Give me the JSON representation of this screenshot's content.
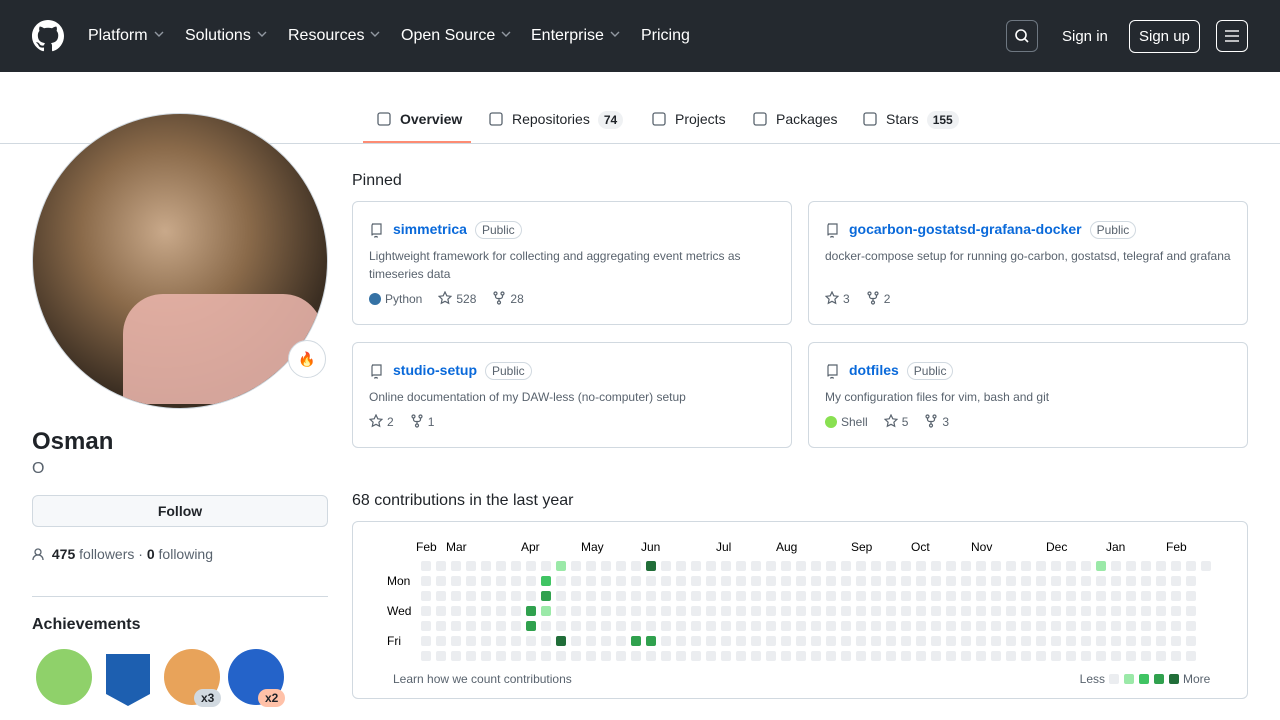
{
  "nav": {
    "items": [
      "Platform",
      "Solutions",
      "Resources",
      "Open Source",
      "Enterprise"
    ],
    "pricing": "Pricing",
    "sign_in": "Sign in",
    "sign_up": "Sign up"
  },
  "tabs": [
    {
      "label": "Overview"
    },
    {
      "label": "Repositories",
      "count": 74
    },
    {
      "label": "Projects"
    },
    {
      "label": "Packages"
    },
    {
      "label": "Stars",
      "count": 155
    }
  ],
  "profile": {
    "name": "Osman",
    "login": "O",
    "follow": "Follow",
    "followers": 475,
    "followers_label": "followers",
    "separator": "·",
    "following": 0,
    "following_label": "following"
  },
  "achievements": {
    "title": "Achievements",
    "badge_counts": [
      "x3",
      "x2"
    ]
  },
  "pinned": {
    "title": "Pinned",
    "repos": [
      {
        "name": "simmetrica",
        "visibility": "Public",
        "description": "Lightweight framework for collecting and aggregating event metrics as timeseries data",
        "language": "Python",
        "language_color": "#3572A5",
        "stars": 528,
        "forks": 28
      },
      {
        "name": "gocarbon-gostatsd-grafana-docker",
        "visibility": "Public",
        "description": "docker-compose setup for running go-carbon, gostatsd, telegraf and grafana",
        "stars": 3,
        "forks": 2
      },
      {
        "name": "studio-setup",
        "visibility": "Public",
        "description": "Online documentation of my DAW-less (no-computer) setup",
        "stars": 2,
        "forks": 1
      },
      {
        "name": "dotfiles",
        "visibility": "Public",
        "description": "My configuration files for vim, bash and git",
        "language": "Shell",
        "language_color": "#89e051",
        "stars": 5,
        "forks": 3
      }
    ]
  },
  "contributions": {
    "title": "68 contributions in the last year",
    "months": [
      "Feb",
      "Mar",
      "Apr",
      "May",
      "Jun",
      "Jul",
      "Aug",
      "Sep",
      "Oct",
      "Nov",
      "Dec",
      "Jan",
      "Feb"
    ],
    "days": [
      "Mon",
      "Wed",
      "Fri"
    ],
    "footer": "Learn how we count contributions",
    "less": "Less",
    "more": "More",
    "level_colors": [
      "#ebedf0",
      "#9be9a8",
      "#40c463",
      "#30a14e",
      "#216e39"
    ],
    "cells": [
      [
        9,
        0,
        1
      ],
      [
        15,
        0,
        4
      ],
      [
        45,
        0,
        1
      ],
      [
        8,
        1,
        2
      ],
      [
        8,
        2,
        3
      ],
      [
        7,
        3,
        3
      ],
      [
        8,
        3,
        1
      ],
      [
        7,
        4,
        3
      ],
      [
        9,
        5,
        4
      ],
      [
        14,
        5,
        3
      ],
      [
        15,
        5,
        3
      ]
    ]
  }
}
